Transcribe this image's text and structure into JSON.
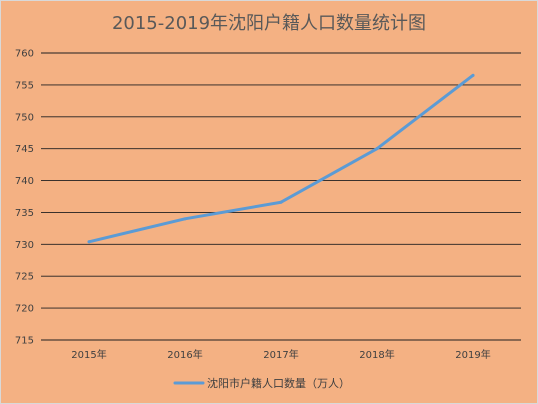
{
  "chart_data": {
    "type": "line",
    "title": "2015-2019年沈阳户籍人口数量统计图",
    "categories": [
      "2015年",
      "2016年",
      "2017年",
      "2018年",
      "2019年"
    ],
    "series": [
      {
        "name": "沈阳市户籍人口数量（万人）",
        "values": [
          730.4,
          734.0,
          736.6,
          745.0,
          756.5
        ]
      }
    ],
    "ylim": [
      715,
      760
    ],
    "yticks": [
      715,
      720,
      725,
      730,
      735,
      740,
      745,
      750,
      755,
      760
    ],
    "grid": true,
    "legend_position": "bottom",
    "line_color": "#5B9BD5",
    "background_color": "#F4B183"
  }
}
